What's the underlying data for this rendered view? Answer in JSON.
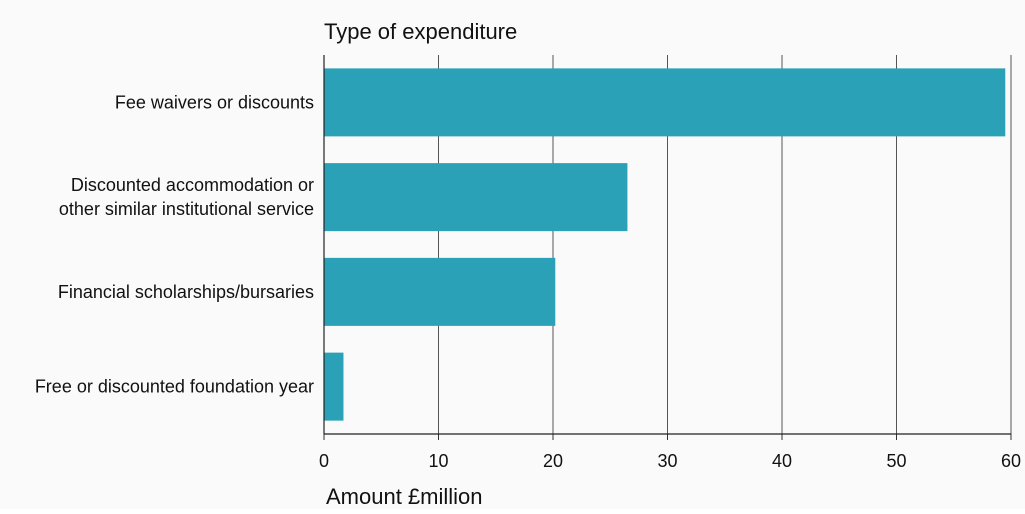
{
  "chart_data": {
    "type": "bar",
    "orientation": "horizontal",
    "ylabel": "Type of expenditure",
    "xlabel": "Amount £million",
    "categories": [
      [
        "Fee waivers or discounts"
      ],
      [
        "Discounted accommodation or",
        "other similar institutional service"
      ],
      [
        "Financial scholarships/bursaries"
      ],
      [
        "Free or discounted foundation year"
      ]
    ],
    "values": [
      59.5,
      26.5,
      20.2,
      1.7
    ],
    "xlim": [
      0,
      60
    ],
    "xticks": [
      0,
      10,
      20,
      30,
      40,
      50,
      60
    ],
    "grid": true,
    "bar_color": "#2aa1b6",
    "grid_color": "#555555"
  }
}
